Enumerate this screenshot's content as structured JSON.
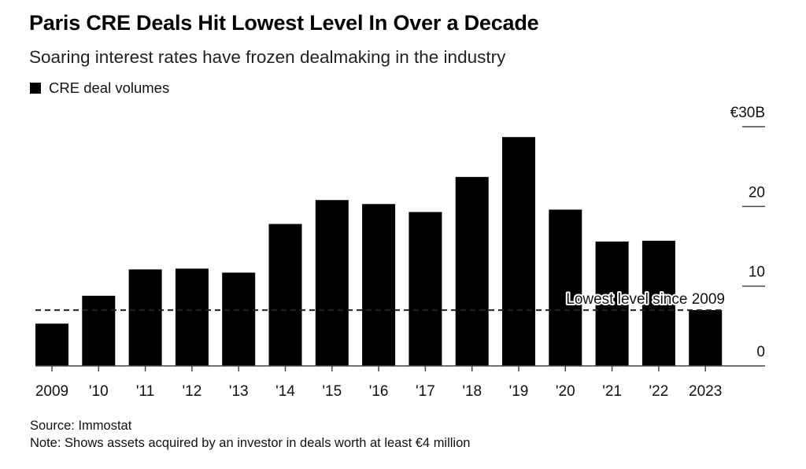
{
  "header": {
    "title": "Paris CRE Deals Hit Lowest Level In Over a Decade",
    "subtitle": "Soaring interest rates have frozen dealmaking in the industry"
  },
  "footer": {
    "source": "Source: Immostat",
    "note": "Note: Shows assets acquired by an investor in deals worth at least €4 million"
  },
  "chart_data": {
    "type": "bar",
    "title": "Paris CRE Deals Hit Lowest Level In Over a Decade",
    "subtitle": "Soaring interest rates have frozen dealmaking in the industry",
    "xlabel": "",
    "ylabel": "",
    "categories": [
      "2009",
      "'10",
      "'11",
      "'12",
      "'13",
      "'14",
      "'15",
      "'16",
      "'17",
      "'18",
      "'19",
      "'20",
      "'21",
      "'22",
      "2023"
    ],
    "series": [
      {
        "name": "CRE deal volumes",
        "color": "#000000",
        "values": [
          5.3,
          8.8,
          12.1,
          12.2,
          11.7,
          17.8,
          20.8,
          20.3,
          19.3,
          23.7,
          28.7,
          19.6,
          15.6,
          15.7,
          7.0
        ]
      }
    ],
    "ylim": [
      0,
      30
    ],
    "yticks": [
      0,
      10,
      20,
      30
    ],
    "ytick_labels": [
      "0",
      "10",
      "20",
      "€30B"
    ],
    "y_axis_side": "right",
    "grid": false,
    "legend": {
      "position": "top-left",
      "entries": [
        "CRE deal volumes"
      ]
    },
    "annotations": [
      {
        "type": "hline",
        "y": 7.0,
        "style": "dashed",
        "text": "Lowest level since 2009"
      }
    ],
    "unit": "€ billions"
  }
}
